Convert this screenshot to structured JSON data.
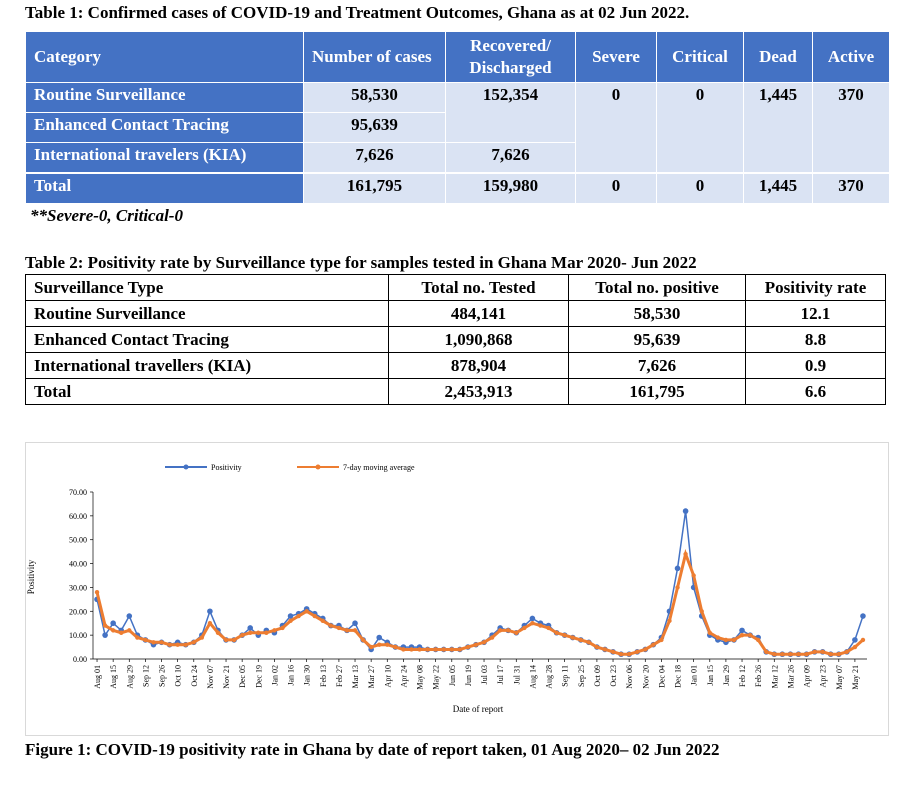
{
  "table1": {
    "title": "Table 1: Confirmed cases of COVID-19 and Treatment Outcomes, Ghana as at 02 Jun 2022.",
    "header": [
      "Category",
      "Number of cases",
      "Recovered/ Discharged",
      "Severe",
      "Critical",
      "Dead",
      "Active"
    ],
    "rows": [
      [
        "Routine Surveillance",
        "58,530",
        "152,354",
        "0",
        "0",
        "1,445",
        "370"
      ],
      [
        "Enhanced Contact Tracing",
        "95,639"
      ],
      [
        "International travelers (KIA)",
        "7,626",
        "7,626"
      ],
      [
        "Total",
        "161,795",
        "159,980",
        "0",
        "0",
        "1,445",
        "370"
      ]
    ],
    "note": "**Severe-0, Critical-0"
  },
  "table2": {
    "title": "Table 2: Positivity rate by Surveillance type for samples tested in Ghana Mar 2020- Jun 2022",
    "header": [
      "Surveillance Type",
      "Total no. Tested",
      "Total no. positive",
      "Positivity rate"
    ],
    "rows": [
      [
        "Routine Surveillance",
        "484,141",
        "58,530",
        "12.1"
      ],
      [
        "Enhanced Contact Tracing",
        "1,090,868",
        "95,639",
        "8.8"
      ],
      [
        "International travellers (KIA)",
        "878,904",
        "7,626",
        "0.9"
      ],
      [
        "Total",
        "2,453,913",
        "161,795",
        "6.6"
      ]
    ]
  },
  "chart_data": {
    "type": "line",
    "x_label": "Date of report",
    "y_label": "Positivity",
    "categories": [
      "Aug 01",
      null,
      "Aug 15",
      null,
      "Aug 29",
      null,
      "Sep 12",
      null,
      "Sep 26",
      null,
      "Oct 10",
      null,
      "Oct 24",
      null,
      "Nov 07",
      null,
      "Nov 21",
      null,
      "Dec 05",
      null,
      "Dec 19",
      null,
      "Jan 02",
      null,
      "Jan 16",
      null,
      "Jan 30",
      null,
      "Feb 13",
      null,
      "Feb 27",
      null,
      "Mar 13",
      null,
      "Mar 27",
      null,
      "Apr 10",
      null,
      "Apr 24",
      null,
      "May 08",
      null,
      "May 22",
      null,
      "Jun 05",
      null,
      "Jun 19",
      null,
      "Jul 03",
      null,
      "Jul 17",
      null,
      "Jul 31",
      null,
      "Aug 14",
      null,
      "Aug 28",
      null,
      "Sep 11",
      null,
      "Sep 25",
      null,
      "Oct 09",
      null,
      "Oct 23",
      null,
      "Nov 06",
      null,
      "Nov 20",
      null,
      "Dec 04",
      null,
      "Dec 18",
      null,
      "Jan 01",
      null,
      "Jan 15",
      null,
      "Jan 29",
      null,
      "Feb 12",
      null,
      "Feb 26",
      null,
      "Mar 12",
      null,
      "Mar 26",
      null,
      "Apr 09",
      null,
      "Apr 23",
      null,
      "May 07",
      null,
      "May 21",
      null
    ],
    "series": [
      {
        "name": "Positivity",
        "color": "#4472c4",
        "values": [
          25,
          10,
          15,
          12,
          18,
          10,
          8,
          6,
          7,
          6,
          7,
          6,
          7,
          10,
          20,
          12,
          8,
          8,
          10,
          13,
          10,
          12,
          11,
          14,
          18,
          19,
          21,
          19,
          17,
          14,
          14,
          12,
          15,
          8,
          4,
          9,
          7,
          5,
          5,
          5,
          5,
          4,
          4,
          4,
          4,
          4,
          5,
          6,
          7,
          10,
          13,
          12,
          11,
          14,
          17,
          15,
          14,
          11,
          10,
          9,
          8,
          7,
          5,
          4,
          3,
          2,
          2,
          3,
          4,
          6,
          9,
          20,
          38,
          62,
          30,
          18,
          10,
          8,
          7,
          8,
          12,
          10,
          9,
          3,
          2,
          2,
          2,
          2,
          2,
          3,
          3,
          2,
          2,
          3,
          8,
          18
        ]
      },
      {
        "name": "7-day moving average",
        "color": "#ed7d31",
        "values": [
          28,
          14,
          12,
          11,
          12,
          9,
          8,
          7,
          7,
          6,
          6,
          6,
          7,
          9,
          15,
          11,
          8,
          8,
          10,
          11,
          11,
          11,
          12,
          13,
          16,
          18,
          20,
          18,
          16,
          14,
          13,
          12,
          12,
          8,
          5,
          6,
          6,
          5,
          4,
          4,
          4,
          4,
          4,
          4,
          4,
          4,
          5,
          6,
          7,
          9,
          12,
          12,
          11,
          13,
          15,
          14,
          13,
          11,
          10,
          9,
          8,
          7,
          5,
          4,
          3,
          2,
          2,
          3,
          4,
          6,
          8,
          16,
          30,
          44,
          35,
          20,
          11,
          9,
          8,
          8,
          10,
          10,
          8,
          3,
          2,
          2,
          2,
          2,
          2,
          3,
          3,
          2,
          2,
          3,
          5,
          8
        ]
      }
    ],
    "ylim": [
      0,
      70
    ],
    "yticks": [
      {
        "value": 0,
        "label": "0.00"
      },
      {
        "value": 10,
        "label": "10.00"
      },
      {
        "value": 20,
        "label": "20.00"
      },
      {
        "value": 30,
        "label": "30.00"
      },
      {
        "value": 40,
        "label": "40.00"
      },
      {
        "value": 50,
        "label": "50.00"
      },
      {
        "value": 60,
        "label": "60.00"
      },
      {
        "value": 70,
        "label": "70.00"
      }
    ],
    "legend": "top"
  },
  "figure_caption": "Figure 1: COVID-19 positivity rate in Ghana by date of report taken, 01 Aug 2020– 02 Jun 2022"
}
